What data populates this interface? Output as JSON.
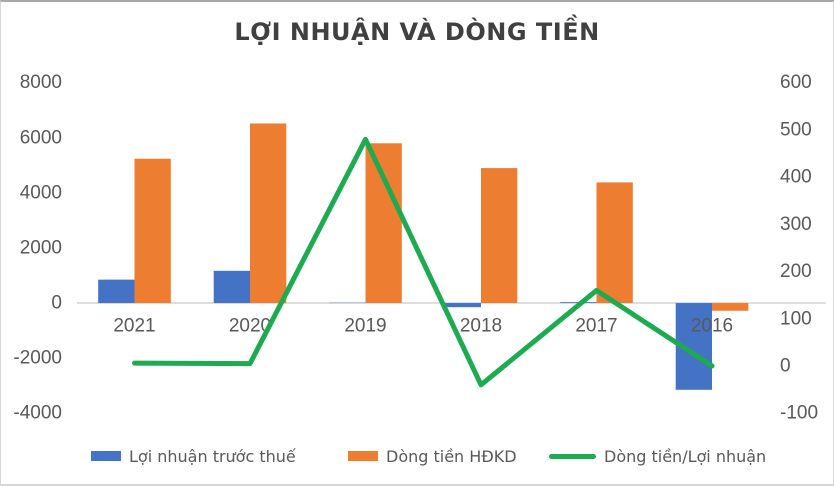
{
  "title": "LỢI NHUẬN VÀ DÒNG TIỀN",
  "colors": {
    "bar_blue": "#4472C4",
    "bar_orange": "#ED7D31",
    "line_green": "#1EAA50",
    "axis_text": "#595959",
    "title_text": "#404040",
    "axis_line": "#D9D9D9"
  },
  "chart_data": {
    "type": "bar",
    "subtype": "combo-bar-line-dual-axis",
    "title": "LỢI NHUẬN VÀ DÒNG TIỀN",
    "categories": [
      "2021",
      "2020",
      "2019",
      "2018",
      "2017",
      "2016"
    ],
    "series": [
      {
        "name": "Lợi nhuận trước thuế",
        "type": "bar",
        "axis": "left",
        "color": "#4472C4",
        "values": [
          850,
          1170,
          10,
          -150,
          30,
          -3150
        ]
      },
      {
        "name": "Dòng tiền HĐKD",
        "type": "bar",
        "axis": "left",
        "color": "#ED7D31",
        "values": [
          5240,
          6520,
          5800,
          4900,
          4380,
          -280
        ]
      },
      {
        "name": "Dòng tiền/Lợi nhuận",
        "type": "line",
        "axis": "right",
        "color": "#1EAA50",
        "values": [
          6,
          5,
          480,
          -40,
          160,
          0
        ]
      }
    ],
    "left_axis": {
      "min": -4000,
      "max": 8000,
      "step": 2000,
      "ticks": [
        "8000",
        "6000",
        "4000",
        "2000",
        "0",
        "-2000",
        "-4000"
      ]
    },
    "right_axis": {
      "min": -100,
      "max": 600,
      "step": 100,
      "ticks": [
        "600",
        "500",
        "400",
        "300",
        "200",
        "100",
        "0",
        "-100"
      ]
    },
    "grid": false,
    "legend_position": "bottom"
  },
  "legend": {
    "items": [
      {
        "label": "Lợi nhuận trước thuế",
        "color": "#4472C4",
        "marker": "rect"
      },
      {
        "label": "Dòng tiền HĐKD",
        "color": "#ED7D31",
        "marker": "rect"
      },
      {
        "label": "Dòng tiền/Lợi nhuận",
        "color": "#1EAA50",
        "marker": "line"
      }
    ]
  }
}
